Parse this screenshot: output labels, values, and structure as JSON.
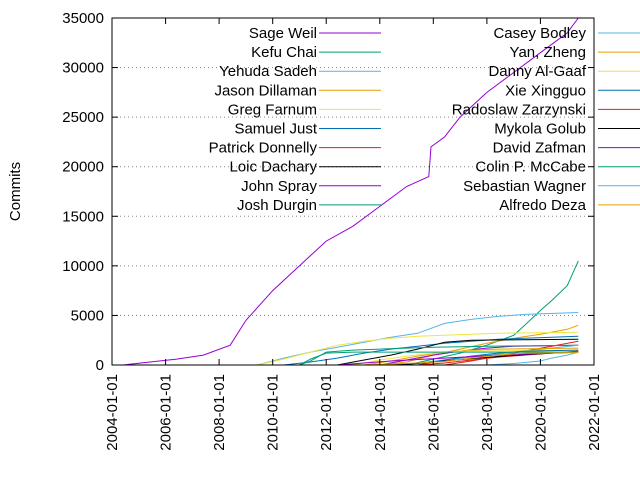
{
  "chart_data": {
    "type": "line",
    "ylabel": "Commits",
    "xlabel": "",
    "title": "",
    "x_type": "date",
    "xlim": [
      "2004-01-01",
      "2022-01-01"
    ],
    "ylim": [
      0,
      35000
    ],
    "x_ticks": [
      "2004-01-01",
      "2006-01-01",
      "2008-01-01",
      "2010-01-01",
      "2012-01-01",
      "2014-01-01",
      "2016-01-01",
      "2018-01-01",
      "2020-01-01",
      "2022-01-01"
    ],
    "y_ticks": [
      0,
      5000,
      10000,
      15000,
      20000,
      25000,
      30000,
      35000
    ],
    "y_tick_labels": [
      "0",
      "5000",
      "10000",
      "15000",
      "20000",
      "25000",
      "30000",
      "35000"
    ],
    "grid": "horizontal dotted",
    "legend_position": "top, two columns",
    "series": [
      {
        "name": "Sage Weil",
        "color": "#9400d3",
        "x": [
          "2004-06-01",
          "2005-06-01",
          "2006-06-01",
          "2007-06-01",
          "2008-06-01",
          "2009-01-01",
          "2010-01-01",
          "2011-01-01",
          "2012-01-01",
          "2013-01-01",
          "2014-01-01",
          "2015-01-01",
          "2015-11-01",
          "2015-12-01",
          "2016-06-01",
          "2017-01-01",
          "2018-01-01",
          "2019-01-01",
          "2020-01-01",
          "2021-01-01",
          "2021-06-01"
        ],
        "y": [
          0,
          300,
          600,
          1000,
          2000,
          4500,
          7500,
          10000,
          12500,
          14000,
          16000,
          18000,
          19000,
          22000,
          23000,
          25000,
          27500,
          29500,
          31500,
          33500,
          35000
        ]
      },
      {
        "name": "Kefu Chai",
        "color": "#009e73",
        "x": [
          "2015-01-01",
          "2016-01-01",
          "2017-01-01",
          "2018-01-01",
          "2019-01-01",
          "2019-06-01",
          "2020-01-01",
          "2020-06-01",
          "2021-01-01",
          "2021-06-01"
        ],
        "y": [
          0,
          600,
          1200,
          2000,
          3000,
          4000,
          5500,
          6500,
          8000,
          10500
        ]
      },
      {
        "name": "Yehuda Sadeh",
        "color": "#56b4e9",
        "x": [
          "2009-06-01",
          "2010-06-01",
          "2011-06-01",
          "2012-06-01",
          "2013-06-01",
          "2014-06-01",
          "2015-06-01",
          "2016-06-01",
          "2017-06-01",
          "2018-06-01",
          "2019-06-01",
          "2021-06-01"
        ],
        "y": [
          0,
          700,
          1300,
          1800,
          2300,
          2800,
          3200,
          4200,
          4600,
          4900,
          5100,
          5300
        ]
      },
      {
        "name": "Jason Dillaman",
        "color": "#e69f00",
        "x": [
          "2014-01-01",
          "2015-01-01",
          "2016-01-01",
          "2017-01-01",
          "2018-01-01",
          "2019-01-01",
          "2020-01-01",
          "2021-01-01",
          "2021-06-01"
        ],
        "y": [
          0,
          300,
          1000,
          1600,
          2200,
          2700,
          3100,
          3600,
          4000
        ]
      },
      {
        "name": "Greg Farnum",
        "color": "#f0e442",
        "x": [
          "2009-06-01",
          "2010-06-01",
          "2011-06-01",
          "2012-06-01",
          "2013-06-01",
          "2014-06-01",
          "2015-06-01",
          "2016-06-01",
          "2018-06-01",
          "2021-06-01"
        ],
        "y": [
          0,
          600,
          1300,
          2000,
          2400,
          2700,
          2900,
          3000,
          3200,
          3300
        ]
      },
      {
        "name": "Samuel Just",
        "color": "#0072b2",
        "x": [
          "2010-06-01",
          "2011-06-01",
          "2012-06-01",
          "2013-06-01",
          "2014-06-01",
          "2015-06-01",
          "2016-06-01",
          "2017-06-01",
          "2018-06-01",
          "2021-06-01"
        ],
        "y": [
          0,
          300,
          700,
          1200,
          1600,
          1900,
          2200,
          2400,
          2600,
          2900
        ]
      },
      {
        "name": "Patrick Donnelly",
        "color": "#e51e10",
        "x": [
          "2016-06-01",
          "2017-06-01",
          "2018-06-01",
          "2019-06-01",
          "2020-06-01",
          "2021-06-01"
        ],
        "y": [
          0,
          400,
          900,
          1400,
          1900,
          2400
        ]
      },
      {
        "name": "Loic Dachary",
        "color": "#000000",
        "x": [
          "2012-06-01",
          "2013-06-01",
          "2014-06-01",
          "2015-06-01",
          "2016-01-01",
          "2016-06-01",
          "2017-06-01",
          "2021-06-01"
        ],
        "y": [
          0,
          500,
          1000,
          1600,
          2000,
          2300,
          2500,
          2600
        ]
      },
      {
        "name": "John Spray",
        "color": "#9400d3",
        "x": [
          "2014-01-01",
          "2015-01-01",
          "2016-01-01",
          "2017-01-01",
          "2018-01-01",
          "2019-01-01",
          "2021-06-01"
        ],
        "y": [
          0,
          500,
          1000,
          1400,
          1700,
          1900,
          2000
        ]
      },
      {
        "name": "Josh Durgin",
        "color": "#009e73",
        "x": [
          "2011-01-01",
          "2011-06-01",
          "2012-01-01",
          "2013-01-01",
          "2014-01-01",
          "2015-01-01",
          "2016-01-01",
          "2018-01-01",
          "2021-06-01"
        ],
        "y": [
          0,
          400,
          1300,
          1500,
          1600,
          1700,
          1800,
          1900,
          2000
        ]
      },
      {
        "name": "Casey Bodley",
        "color": "#56b4e9",
        "x": [
          "2014-06-01",
          "2015-06-01",
          "2016-06-01",
          "2017-06-01",
          "2018-06-01",
          "2019-06-01",
          "2020-06-01",
          "2021-06-01"
        ],
        "y": [
          0,
          200,
          500,
          800,
          1100,
          1400,
          1700,
          2000
        ]
      },
      {
        "name": "Yan, Zheng",
        "color": "#e69f00",
        "x": [
          "2013-06-01",
          "2014-06-01",
          "2015-06-01",
          "2016-06-01",
          "2017-06-01",
          "2018-06-01",
          "2021-06-01"
        ],
        "y": [
          0,
          400,
          900,
          1300,
          1500,
          1600,
          1700
        ]
      },
      {
        "name": "Danny Al-Gaaf",
        "color": "#f0e442",
        "x": [
          "2013-01-01",
          "2014-01-01",
          "2015-01-01",
          "2016-01-01",
          "2017-01-01",
          "2021-06-01"
        ],
        "y": [
          0,
          500,
          900,
          1200,
          1400,
          1500
        ]
      },
      {
        "name": "Xie Xingguo",
        "color": "#0072b2",
        "x": [
          "2015-06-01",
          "2016-06-01",
          "2017-06-01",
          "2018-06-01",
          "2019-06-01",
          "2021-06-01"
        ],
        "y": [
          0,
          500,
          900,
          1200,
          1400,
          1500
        ]
      },
      {
        "name": "Radoslaw Zarzynski",
        "color": "#e51e10",
        "x": [
          "2015-06-01",
          "2016-06-01",
          "2017-06-01",
          "2018-06-01",
          "2019-06-01",
          "2020-06-01",
          "2021-06-01"
        ],
        "y": [
          0,
          200,
          500,
          800,
          1000,
          1200,
          1400
        ]
      },
      {
        "name": "Mykola Golub",
        "color": "#000000",
        "x": [
          "2014-06-01",
          "2015-06-01",
          "2016-06-01",
          "2017-06-01",
          "2018-06-01",
          "2019-06-01",
          "2020-06-01",
          "2021-06-01"
        ],
        "y": [
          0,
          150,
          400,
          650,
          850,
          1050,
          1200,
          1300
        ]
      },
      {
        "name": "David Zafman",
        "color": "#9400d3",
        "x": [
          "2012-06-01",
          "2013-06-01",
          "2014-06-01",
          "2015-06-01",
          "2016-06-01",
          "2017-06-01",
          "2018-06-01",
          "2019-06-01",
          "2020-06-01",
          "2021-06-01"
        ],
        "y": [
          0,
          200,
          400,
          550,
          700,
          850,
          1000,
          1100,
          1200,
          1300
        ]
      },
      {
        "name": "Colin P. McCabe",
        "color": "#009e73",
        "x": [
          "2011-01-01",
          "2011-06-01",
          "2012-01-01",
          "2013-01-01",
          "2021-06-01"
        ],
        "y": [
          0,
          600,
          1200,
          1300,
          1300
        ]
      },
      {
        "name": "Sebastian Wagner",
        "color": "#56b4e9",
        "x": [
          "2018-01-01",
          "2019-01-01",
          "2020-01-01",
          "2020-06-01",
          "2021-01-01",
          "2021-06-01"
        ],
        "y": [
          0,
          150,
          400,
          700,
          1000,
          1300
        ]
      },
      {
        "name": "Alfredo Deza",
        "color": "#e69f00",
        "x": [
          "2013-06-01",
          "2014-06-01",
          "2015-06-01",
          "2016-06-01",
          "2017-06-01",
          "2018-06-01",
          "2019-06-01",
          "2021-06-01"
        ],
        "y": [
          0,
          100,
          200,
          350,
          700,
          1000,
          1200,
          1250
        ]
      }
    ]
  }
}
